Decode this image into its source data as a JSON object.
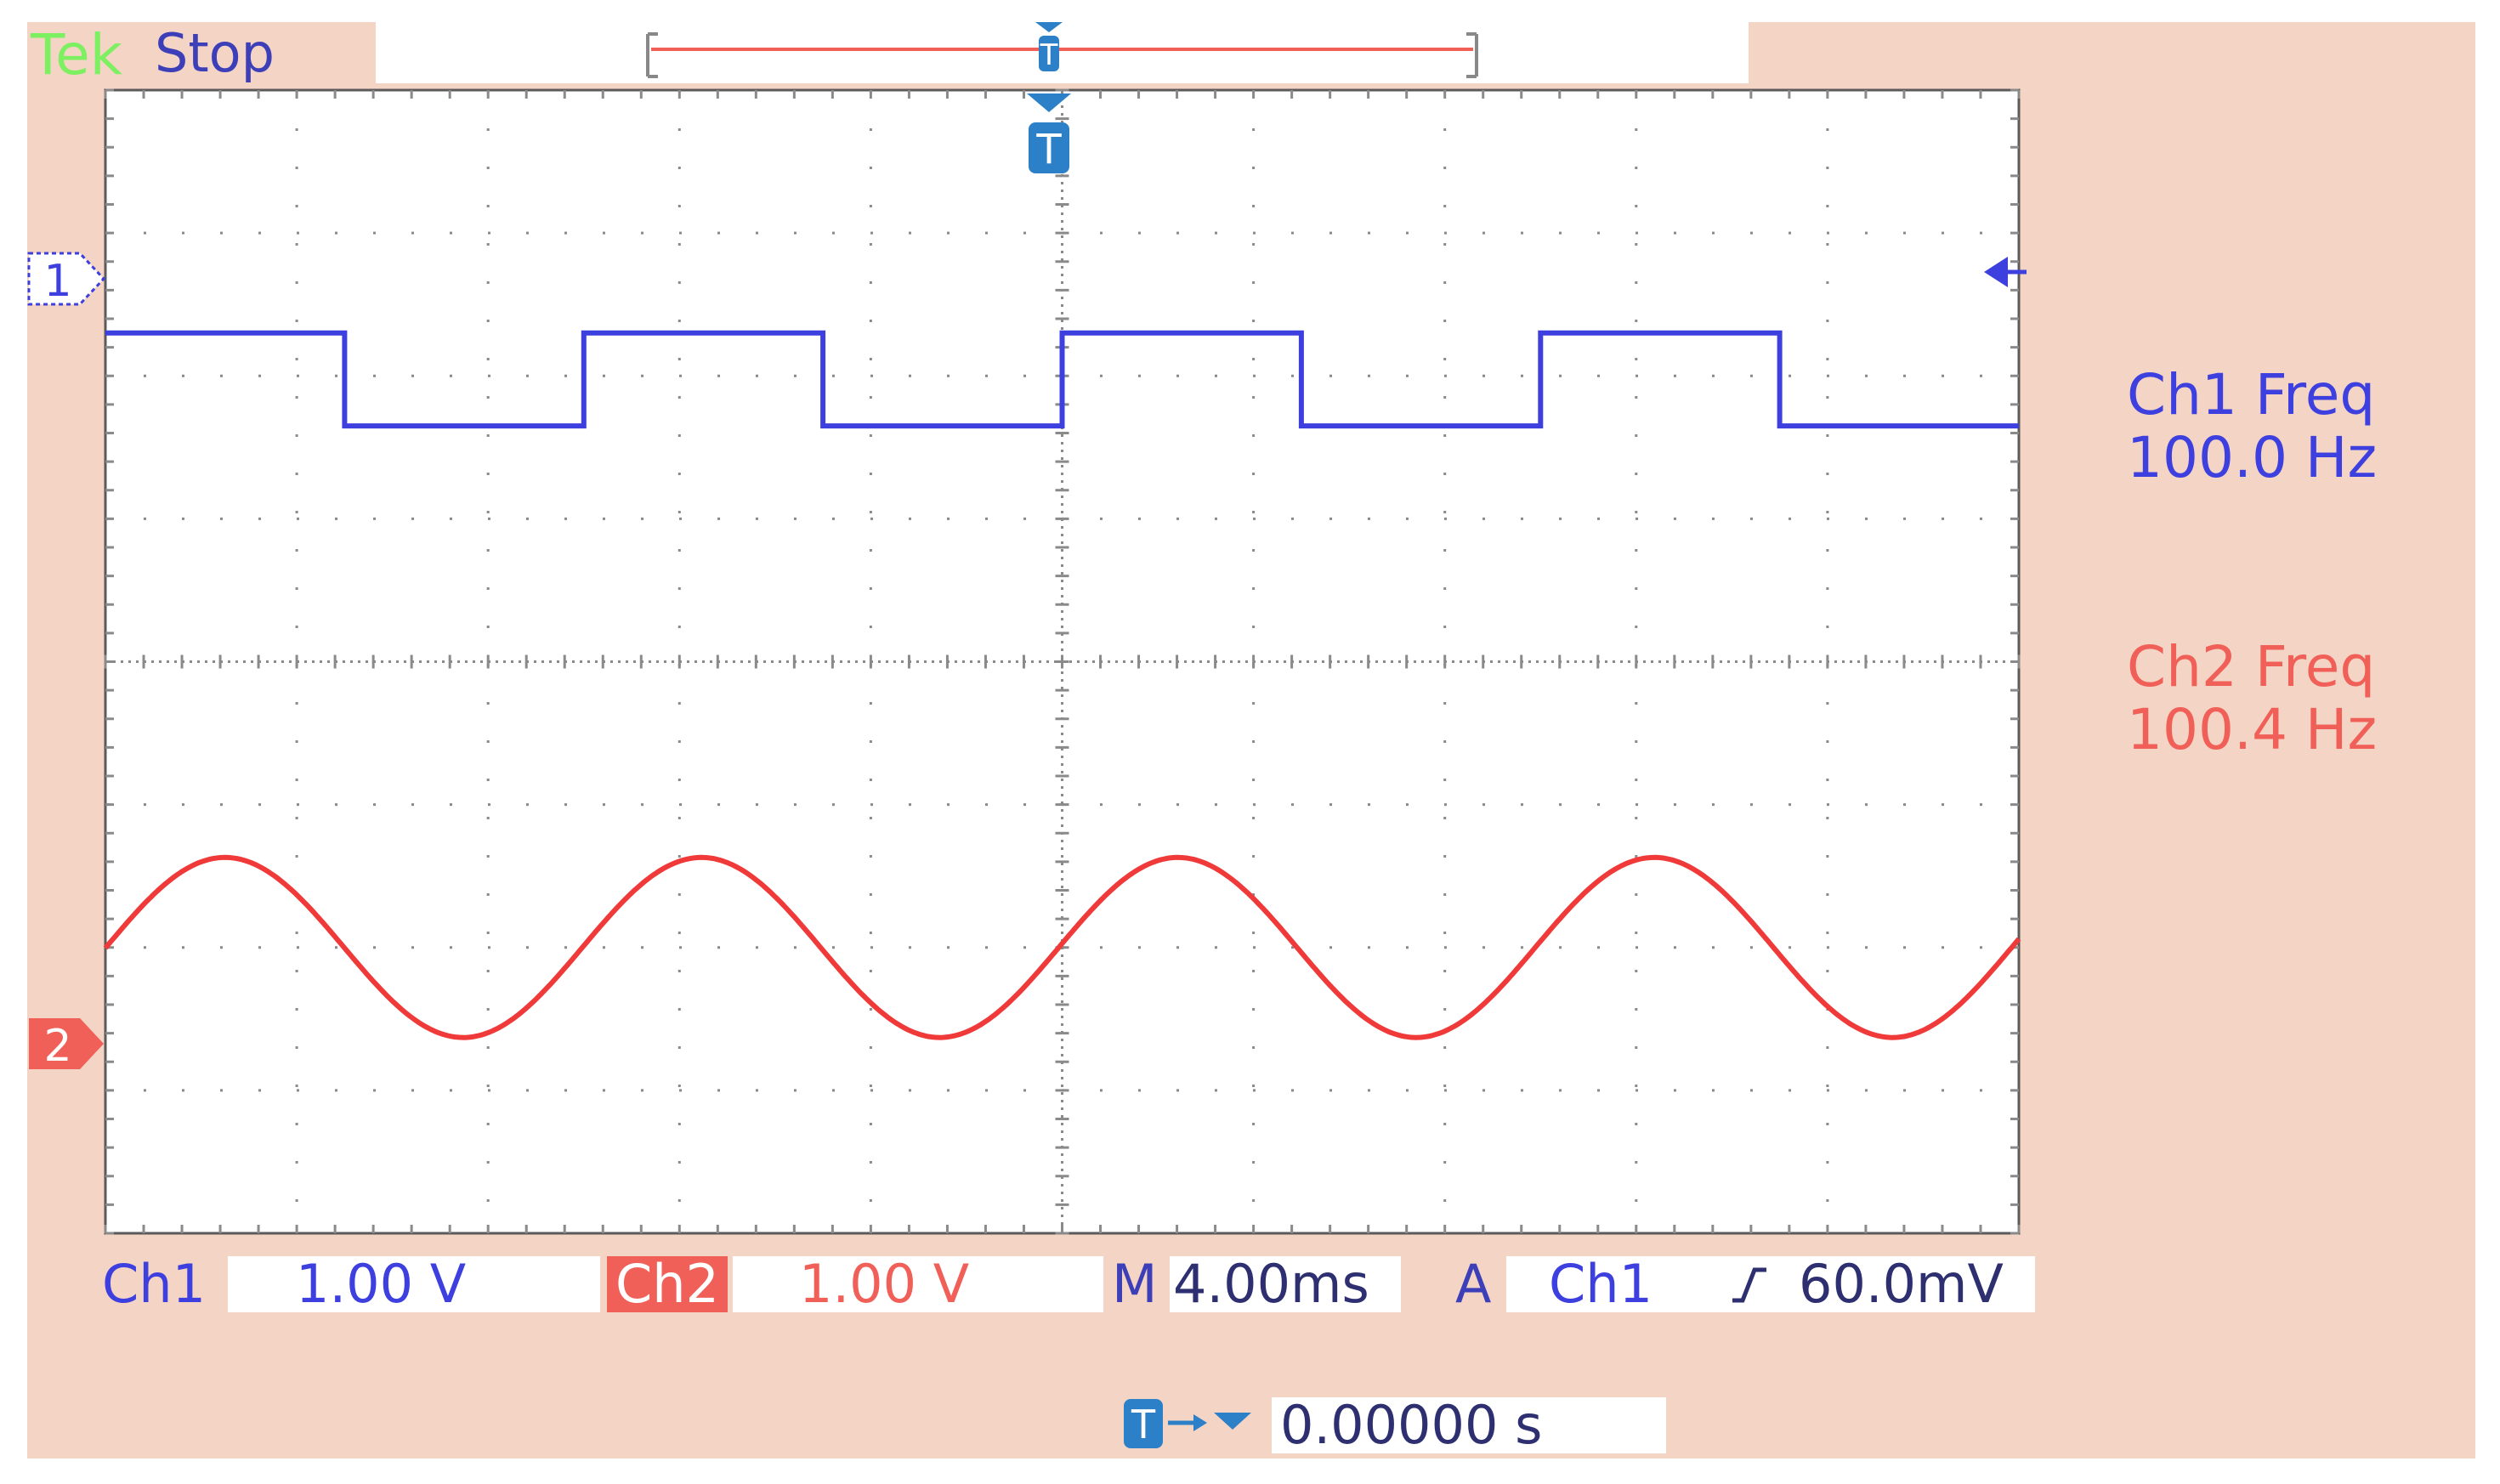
{
  "header": {
    "brand": "Tek",
    "run_state": "Stop"
  },
  "channels": [
    {
      "label": "Ch1",
      "scale": "1.00 V",
      "marker": "1",
      "color": "#3d3fde"
    },
    {
      "label": "Ch2",
      "scale": "1.00 V",
      "marker": "2",
      "color": "#f06058"
    }
  ],
  "timebase": {
    "label": "M",
    "value": "4.00ms"
  },
  "trigger": {
    "mode": "A",
    "source": "Ch1",
    "slope": "rising-edge-icon",
    "level": "60.0mV",
    "marker": "T"
  },
  "trigger_position": {
    "value": "0.00000 s"
  },
  "measurements": [
    {
      "name": "Ch1 Freq",
      "value": "100.0 Hz"
    },
    {
      "name": "Ch2 Freq",
      "value": "100.4 Hz"
    }
  ],
  "chart_data": {
    "type": "line",
    "title": "",
    "xlabel": "",
    "ylabel": "",
    "xlim": [
      0,
      40
    ],
    "x_unit": "ms",
    "x_divisions": 10,
    "y_divisions": 8,
    "grid": true,
    "series": [
      {
        "name": "Ch1",
        "kind": "square",
        "frequency_hz": 100.0,
        "period_ms": 10.0,
        "duty": 0.5,
        "high_div": 2.3,
        "low_div": 1.65,
        "start_ms": 0,
        "starts_high": true
      },
      {
        "name": "Ch2",
        "kind": "sine",
        "frequency_hz": 100.4,
        "period_ms": 9.96,
        "offset_div": -2.0,
        "amplitude_div": 0.63,
        "phase_ms_at_peak": 2.5
      }
    ]
  }
}
